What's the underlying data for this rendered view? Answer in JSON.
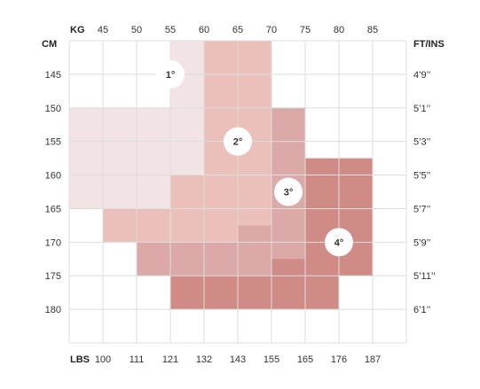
{
  "chart_data": {
    "type": "heatmap",
    "axes": {
      "kg_unit": "KG",
      "kg_ticks": [
        45,
        50,
        55,
        60,
        65,
        70,
        75,
        80,
        85
      ],
      "cm_unit": "CM",
      "cm_ticks": [
        145,
        150,
        155,
        160,
        165,
        170,
        175,
        180
      ],
      "ftins_unit": "FT/INS",
      "ftins_ticks": [
        "4’9’’",
        "5’1’’",
        "5’3’’",
        "5’5’’",
        "5’7’’",
        "5’9’’",
        "5’11’’",
        "6’1’’"
      ],
      "lbs_unit": "LBS",
      "lbs_ticks": [
        "100",
        "111",
        "121",
        "132",
        "143",
        "155",
        "165",
        "176",
        "187"
      ],
      "x_range_kg": [
        40,
        90
      ],
      "y_range_cm": [
        140,
        185
      ],
      "grid": true
    },
    "colors": {
      "size1": "#f2e4e4",
      "size2": "#ebbfba",
      "size3": "#dba9a7",
      "size4": "#d08b86",
      "grid": "#dddddd",
      "label_circle": "#ffffff"
    },
    "zones": [
      {
        "label": "1°",
        "color_key": "size1",
        "label_at": {
          "kg": 55,
          "cm": 145
        },
        "rects": [
          {
            "kg": [
              55,
              65
            ],
            "cm": [
              140,
              150
            ]
          },
          {
            "kg": [
              40,
              60
            ],
            "cm": [
              150,
              165
            ]
          }
        ]
      },
      {
        "label": "2°",
        "color_key": "size2",
        "label_at": {
          "kg": 65,
          "cm": 155
        },
        "rects": [
          {
            "kg": [
              60,
              70
            ],
            "cm": [
              140,
              160
            ]
          },
          {
            "kg": [
              55,
              70
            ],
            "cm": [
              160,
              165
            ]
          },
          {
            "kg": [
              45,
              70
            ],
            "cm": [
              165,
              170
            ]
          },
          {
            "kg": [
              60,
              65
            ],
            "cm": [
              170,
              175
            ]
          }
        ]
      },
      {
        "label": "3°",
        "color_key": "size3",
        "label_at": {
          "kg": 72.5,
          "cm": 162.5
        },
        "rects": [
          {
            "kg": [
              70,
              75
            ],
            "cm": [
              150,
              175
            ]
          },
          {
            "kg": [
              65,
              70
            ],
            "cm": [
              167.5,
              175
            ]
          },
          {
            "kg": [
              50,
              65
            ],
            "cm": [
              170,
              175
            ]
          }
        ]
      },
      {
        "label": "4°",
        "color_key": "size4",
        "label_at": {
          "kg": 80,
          "cm": 170
        },
        "rects": [
          {
            "kg": [
              75,
              85
            ],
            "cm": [
              157.5,
              175
            ]
          },
          {
            "kg": [
              70,
              75
            ],
            "cm": [
              172.5,
              175
            ]
          },
          {
            "kg": [
              55,
              80
            ],
            "cm": [
              175,
              180
            ]
          }
        ]
      }
    ]
  }
}
